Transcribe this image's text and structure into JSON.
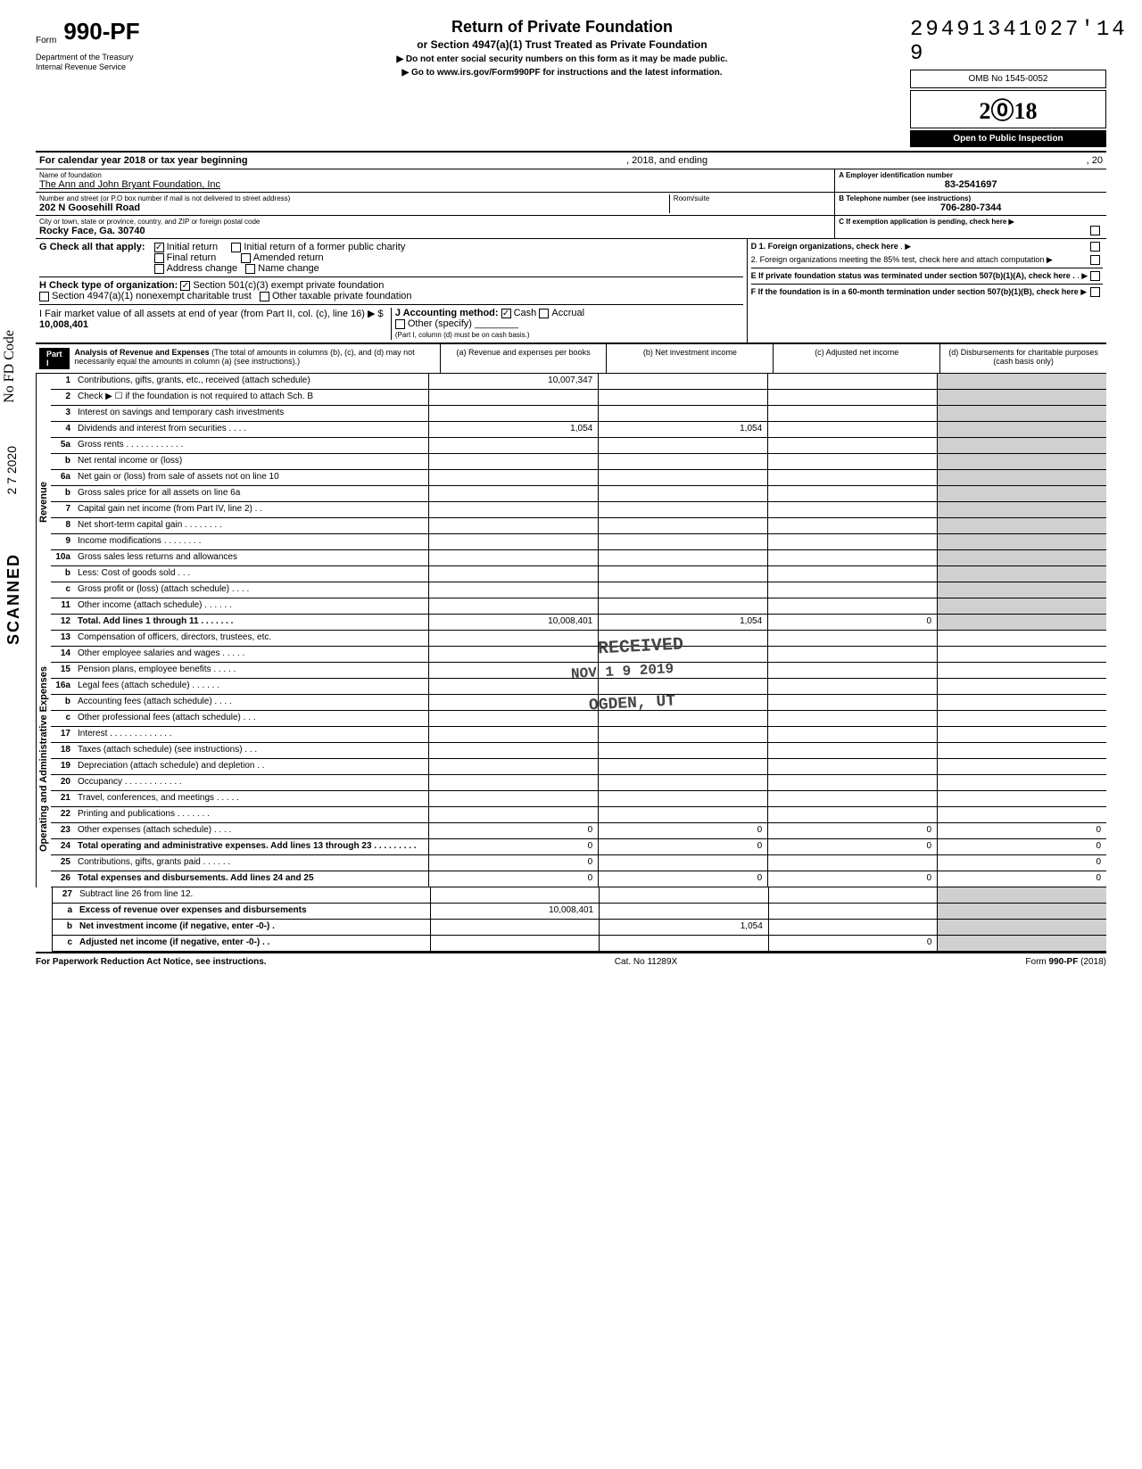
{
  "tracking_number": "29491341027'14 9",
  "form": {
    "prefix": "Form",
    "number": "990-PF",
    "title": "Return of Private Foundation",
    "subtitle": "or Section 4947(a)(1) Trust Treated as Private Foundation",
    "instruction1": "▶ Do not enter social security numbers on this form as it may be made public.",
    "instruction2": "▶ Go to www.irs.gov/Form990PF for instructions and the latest information.",
    "dept1": "Department of the Treasury",
    "dept2": "Internal Revenue Service",
    "omb": "OMB No 1545-0052",
    "year": "2018",
    "year_styled": "2⓪18",
    "inspection": "Open to Public Inspection"
  },
  "calendar": {
    "text": "For calendar year 2018 or tax year beginning",
    "middle": ", 2018, and ending",
    "end": ", 20"
  },
  "identity": {
    "name_label": "Name of foundation",
    "name": "The Ann and John Bryant Foundation, Inc",
    "ein_label": "A Employer identification number",
    "ein": "83-2541697",
    "address_label": "Number and street (or P.O box number if mail is not delivered to street address)",
    "room_label": "Room/suite",
    "address": "202 N Goosehill Road",
    "phone_label": "B Telephone number (see instructions)",
    "phone": "706-280-7344",
    "city_label": "City or town, state or province, country, and ZIP or foreign postal code",
    "city": "Rocky Face, Ga. 30740",
    "c_label": "C If exemption application is pending, check here ▶"
  },
  "sectionG": {
    "label": "G  Check all that apply:",
    "initial": "Initial return",
    "initial_former": "Initial return of a former public charity",
    "final": "Final return",
    "amended": "Amended return",
    "address_change": "Address change",
    "name_change": "Name change",
    "d1": "D 1. Foreign organizations, check here",
    "d2": "2. Foreign organizations meeting the 85% test, check here and attach computation",
    "e": "E  If private foundation status was terminated under section 507(b)(1)(A), check here  .",
    "f": "F  If the foundation is in a 60-month termination under section 507(b)(1)(B), check here"
  },
  "sectionH": {
    "label": "H  Check type of organization:",
    "opt1": "Section 501(c)(3) exempt private foundation",
    "opt2": "Section 4947(a)(1) nonexempt charitable trust",
    "opt3": "Other taxable private foundation"
  },
  "sectionI": {
    "label": "I   Fair market value of all assets at end of year  (from Part II, col. (c), line 16) ▶ $",
    "value": "10,008,401",
    "j_label": "J   Accounting method:",
    "cash": "Cash",
    "accrual": "Accrual",
    "other": "Other (specify)",
    "note": "(Part I, column (d) must be on cash basis.)"
  },
  "partI": {
    "label": "Part I",
    "title": "Analysis of Revenue and Expenses",
    "title_note": "(The total of amounts in columns (b), (c), and (d) may not necessarily equal the amounts in column (a) (see instructions).)",
    "col_a": "(a) Revenue and expenses per books",
    "col_b": "(b) Net investment income",
    "col_c": "(c) Adjusted net income",
    "col_d": "(d) Disbursements for charitable purposes (cash basis only)"
  },
  "revenue_label": "Revenue",
  "expenses_label": "Operating and Administrative Expenses",
  "rows": [
    {
      "num": "1",
      "desc": "Contributions, gifts, grants, etc., received (attach schedule)",
      "a": "10,007,347",
      "b": "",
      "c": "",
      "d": ""
    },
    {
      "num": "2",
      "desc": "Check ▶ ☐ if the foundation is not required to attach Sch. B",
      "a": "",
      "b": "",
      "c": "",
      "d": ""
    },
    {
      "num": "3",
      "desc": "Interest on savings and temporary cash investments",
      "a": "",
      "b": "",
      "c": "",
      "d": ""
    },
    {
      "num": "4",
      "desc": "Dividends and interest from securities . . . .",
      "a": "1,054",
      "b": "1,054",
      "c": "",
      "d": ""
    },
    {
      "num": "5a",
      "desc": "Gross rents . . . . . . . . . . . .",
      "a": "",
      "b": "",
      "c": "",
      "d": ""
    },
    {
      "num": "b",
      "desc": "Net rental income or (loss)",
      "a": "",
      "b": "",
      "c": "",
      "d": ""
    },
    {
      "num": "6a",
      "desc": "Net gain or (loss) from sale of assets not on line 10",
      "a": "",
      "b": "",
      "c": "",
      "d": ""
    },
    {
      "num": "b",
      "desc": "Gross sales price for all assets on line 6a",
      "a": "",
      "b": "",
      "c": "",
      "d": ""
    },
    {
      "num": "7",
      "desc": "Capital gain net income (from Part IV, line 2) . .",
      "a": "",
      "b": "",
      "c": "",
      "d": ""
    },
    {
      "num": "8",
      "desc": "Net short-term capital gain . . . . . . . .",
      "a": "",
      "b": "",
      "c": "",
      "d": ""
    },
    {
      "num": "9",
      "desc": "Income modifications   . . . . . . . .",
      "a": "",
      "b": "",
      "c": "",
      "d": ""
    },
    {
      "num": "10a",
      "desc": "Gross sales less returns and allowances",
      "a": "",
      "b": "",
      "c": "",
      "d": ""
    },
    {
      "num": "b",
      "desc": "Less: Cost of goods sold  . . .",
      "a": "",
      "b": "",
      "c": "",
      "d": ""
    },
    {
      "num": "c",
      "desc": "Gross profit or (loss) (attach schedule) . . . .",
      "a": "",
      "b": "",
      "c": "",
      "d": ""
    },
    {
      "num": "11",
      "desc": "Other income (attach schedule) . . . . . .",
      "a": "",
      "b": "",
      "c": "",
      "d": ""
    },
    {
      "num": "12",
      "desc": "Total. Add lines 1 through 11 . . . . . . .",
      "a": "10,008,401",
      "b": "1,054",
      "c": "0",
      "d": "",
      "bold": true
    }
  ],
  "expense_rows": [
    {
      "num": "13",
      "desc": "Compensation of officers, directors, trustees, etc.",
      "a": "",
      "b": "",
      "c": "",
      "d": ""
    },
    {
      "num": "14",
      "desc": "Other employee salaries and wages . . . . .",
      "a": "",
      "b": "",
      "c": "",
      "d": ""
    },
    {
      "num": "15",
      "desc": "Pension plans, employee benefits . . . . .",
      "a": "",
      "b": "",
      "c": "",
      "d": ""
    },
    {
      "num": "16a",
      "desc": "Legal fees (attach schedule)  . . . . . .",
      "a": "",
      "b": "",
      "c": "",
      "d": ""
    },
    {
      "num": "b",
      "desc": "Accounting fees (attach schedule)  . . . .",
      "a": "",
      "b": "",
      "c": "",
      "d": ""
    },
    {
      "num": "c",
      "desc": "Other professional fees (attach schedule) . . .",
      "a": "",
      "b": "",
      "c": "",
      "d": ""
    },
    {
      "num": "17",
      "desc": "Interest . . . . . . . . . . . . .",
      "a": "",
      "b": "",
      "c": "",
      "d": ""
    },
    {
      "num": "18",
      "desc": "Taxes (attach schedule) (see instructions) . . .",
      "a": "",
      "b": "",
      "c": "",
      "d": ""
    },
    {
      "num": "19",
      "desc": "Depreciation (attach schedule) and depletion . .",
      "a": "",
      "b": "",
      "c": "",
      "d": ""
    },
    {
      "num": "20",
      "desc": "Occupancy . . . . . . . . . . . .",
      "a": "",
      "b": "",
      "c": "",
      "d": ""
    },
    {
      "num": "21",
      "desc": "Travel, conferences, and meetings . . . . .",
      "a": "",
      "b": "",
      "c": "",
      "d": ""
    },
    {
      "num": "22",
      "desc": "Printing and publications  . . . . . . .",
      "a": "",
      "b": "",
      "c": "",
      "d": ""
    },
    {
      "num": "23",
      "desc": "Other expenses (attach schedule)  . . . .",
      "a": "0",
      "b": "0",
      "c": "0",
      "d": "0"
    },
    {
      "num": "24",
      "desc": "Total operating and administrative expenses. Add lines 13 through 23 . . . . . . . . .",
      "a": "0",
      "b": "0",
      "c": "0",
      "d": "0",
      "bold": true
    },
    {
      "num": "25",
      "desc": "Contributions, gifts, grants paid . . . . . .",
      "a": "0",
      "b": "",
      "c": "",
      "d": "0"
    },
    {
      "num": "26",
      "desc": "Total expenses and disbursements. Add lines 24 and 25",
      "a": "0",
      "b": "0",
      "c": "0",
      "d": "0",
      "bold": true
    }
  ],
  "bottom_rows": [
    {
      "num": "27",
      "desc": "Subtract line 26 from line 12."
    },
    {
      "num": "a",
      "desc": "Excess of revenue over expenses and disbursements",
      "a": "10,008,401",
      "bold": true
    },
    {
      "num": "b",
      "desc": "Net investment income (if negative, enter -0-) .",
      "b": "1,054",
      "bold": true
    },
    {
      "num": "c",
      "desc": "Adjusted net income (if negative, enter -0-) . .",
      "c": "0",
      "bold": true
    }
  ],
  "footer": {
    "left": "For Paperwork Reduction Act Notice, see instructions.",
    "mid": "Cat. No 11289X",
    "right": "Form 990-PF (2018)"
  },
  "stamps": {
    "received": "RECEIVED",
    "date": "NOV 1 9 2019",
    "ogden": "OGDEN, UT"
  },
  "margin": {
    "scanned": "SCANNED",
    "date": "2 7 2020",
    "notes": "No FD Code"
  }
}
